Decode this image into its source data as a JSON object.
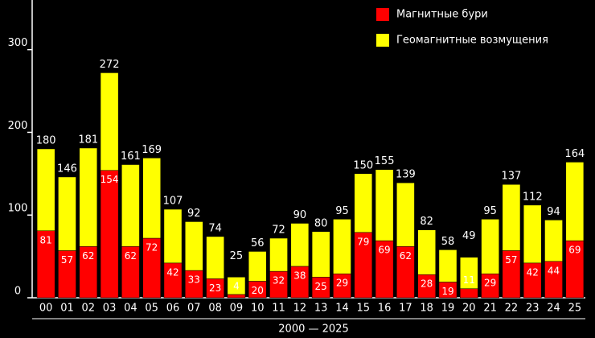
{
  "chart_data": {
    "type": "stacked-bar",
    "xlabel": "2000 — 2025",
    "categories": [
      "00",
      "01",
      "02",
      "03",
      "04",
      "05",
      "06",
      "07",
      "08",
      "09",
      "10",
      "11",
      "12",
      "13",
      "14",
      "15",
      "16",
      "17",
      "18",
      "19",
      "20",
      "21",
      "22",
      "23",
      "24",
      "25"
    ],
    "series": [
      {
        "name": "Магнитные бури",
        "color": "#ff0000",
        "values": [
          81,
          57,
          62,
          154,
          62,
          72,
          42,
          33,
          23,
          4,
          20,
          32,
          38,
          25,
          29,
          79,
          69,
          62,
          28,
          19,
          11,
          29,
          57,
          42,
          44,
          69
        ]
      },
      {
        "name": "Геомагнитные возмущения",
        "color": "#ffff00",
        "values": [
          99,
          89,
          119,
          118,
          99,
          97,
          65,
          59,
          51,
          21,
          36,
          40,
          52,
          55,
          66,
          71,
          86,
          77,
          54,
          39,
          38,
          66,
          80,
          70,
          50,
          95
        ]
      }
    ],
    "totals": [
      180,
      146,
      181,
      272,
      161,
      169,
      107,
      92,
      74,
      25,
      56,
      72,
      90,
      80,
      95,
      150,
      155,
      139,
      82,
      58,
      49,
      95,
      137,
      112,
      94,
      164
    ],
    "ylim": [
      0,
      360
    ],
    "yticks": [
      0,
      100,
      200,
      300
    ],
    "legend": "top-right"
  }
}
